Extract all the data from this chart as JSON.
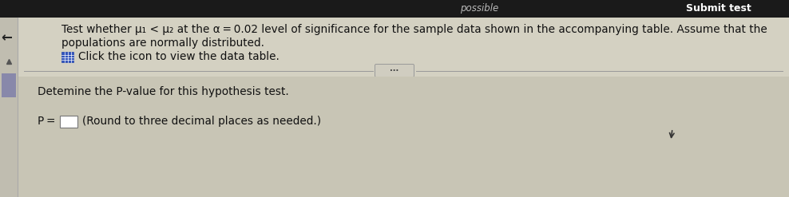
{
  "bg_top": "#1a1a1a",
  "bg_main": "#d4d1c2",
  "bg_bottom": "#c8c5b5",
  "left_bar_color": "#888899",
  "left_bar_width": 22,
  "top_bar_height": 22,
  "top_text_left": "possible",
  "top_text_right": "Submit test",
  "top_text_color": "#bbbbbb",
  "top_text_right_color": "#ffffff",
  "line1": "Test whether μ₁ < μ₂ at the α = 0.02 level of significance for the sample data shown in the accompanying table. Assume that the",
  "line2": "populations are normally distributed.",
  "line3_icon_text": "Click the icon to view the data table.",
  "line4": "Detemine the P-value for this hypothesis test.",
  "divider_color": "#999999",
  "text_color": "#111111",
  "main_font_size": 9.8,
  "icon_color": "#3355bb",
  "icon_border": "#2244aa",
  "btn_bg": "#d0cdc0",
  "btn_border": "#999999",
  "scroll_thumb": "#8888aa",
  "cursor_color": "#333333"
}
